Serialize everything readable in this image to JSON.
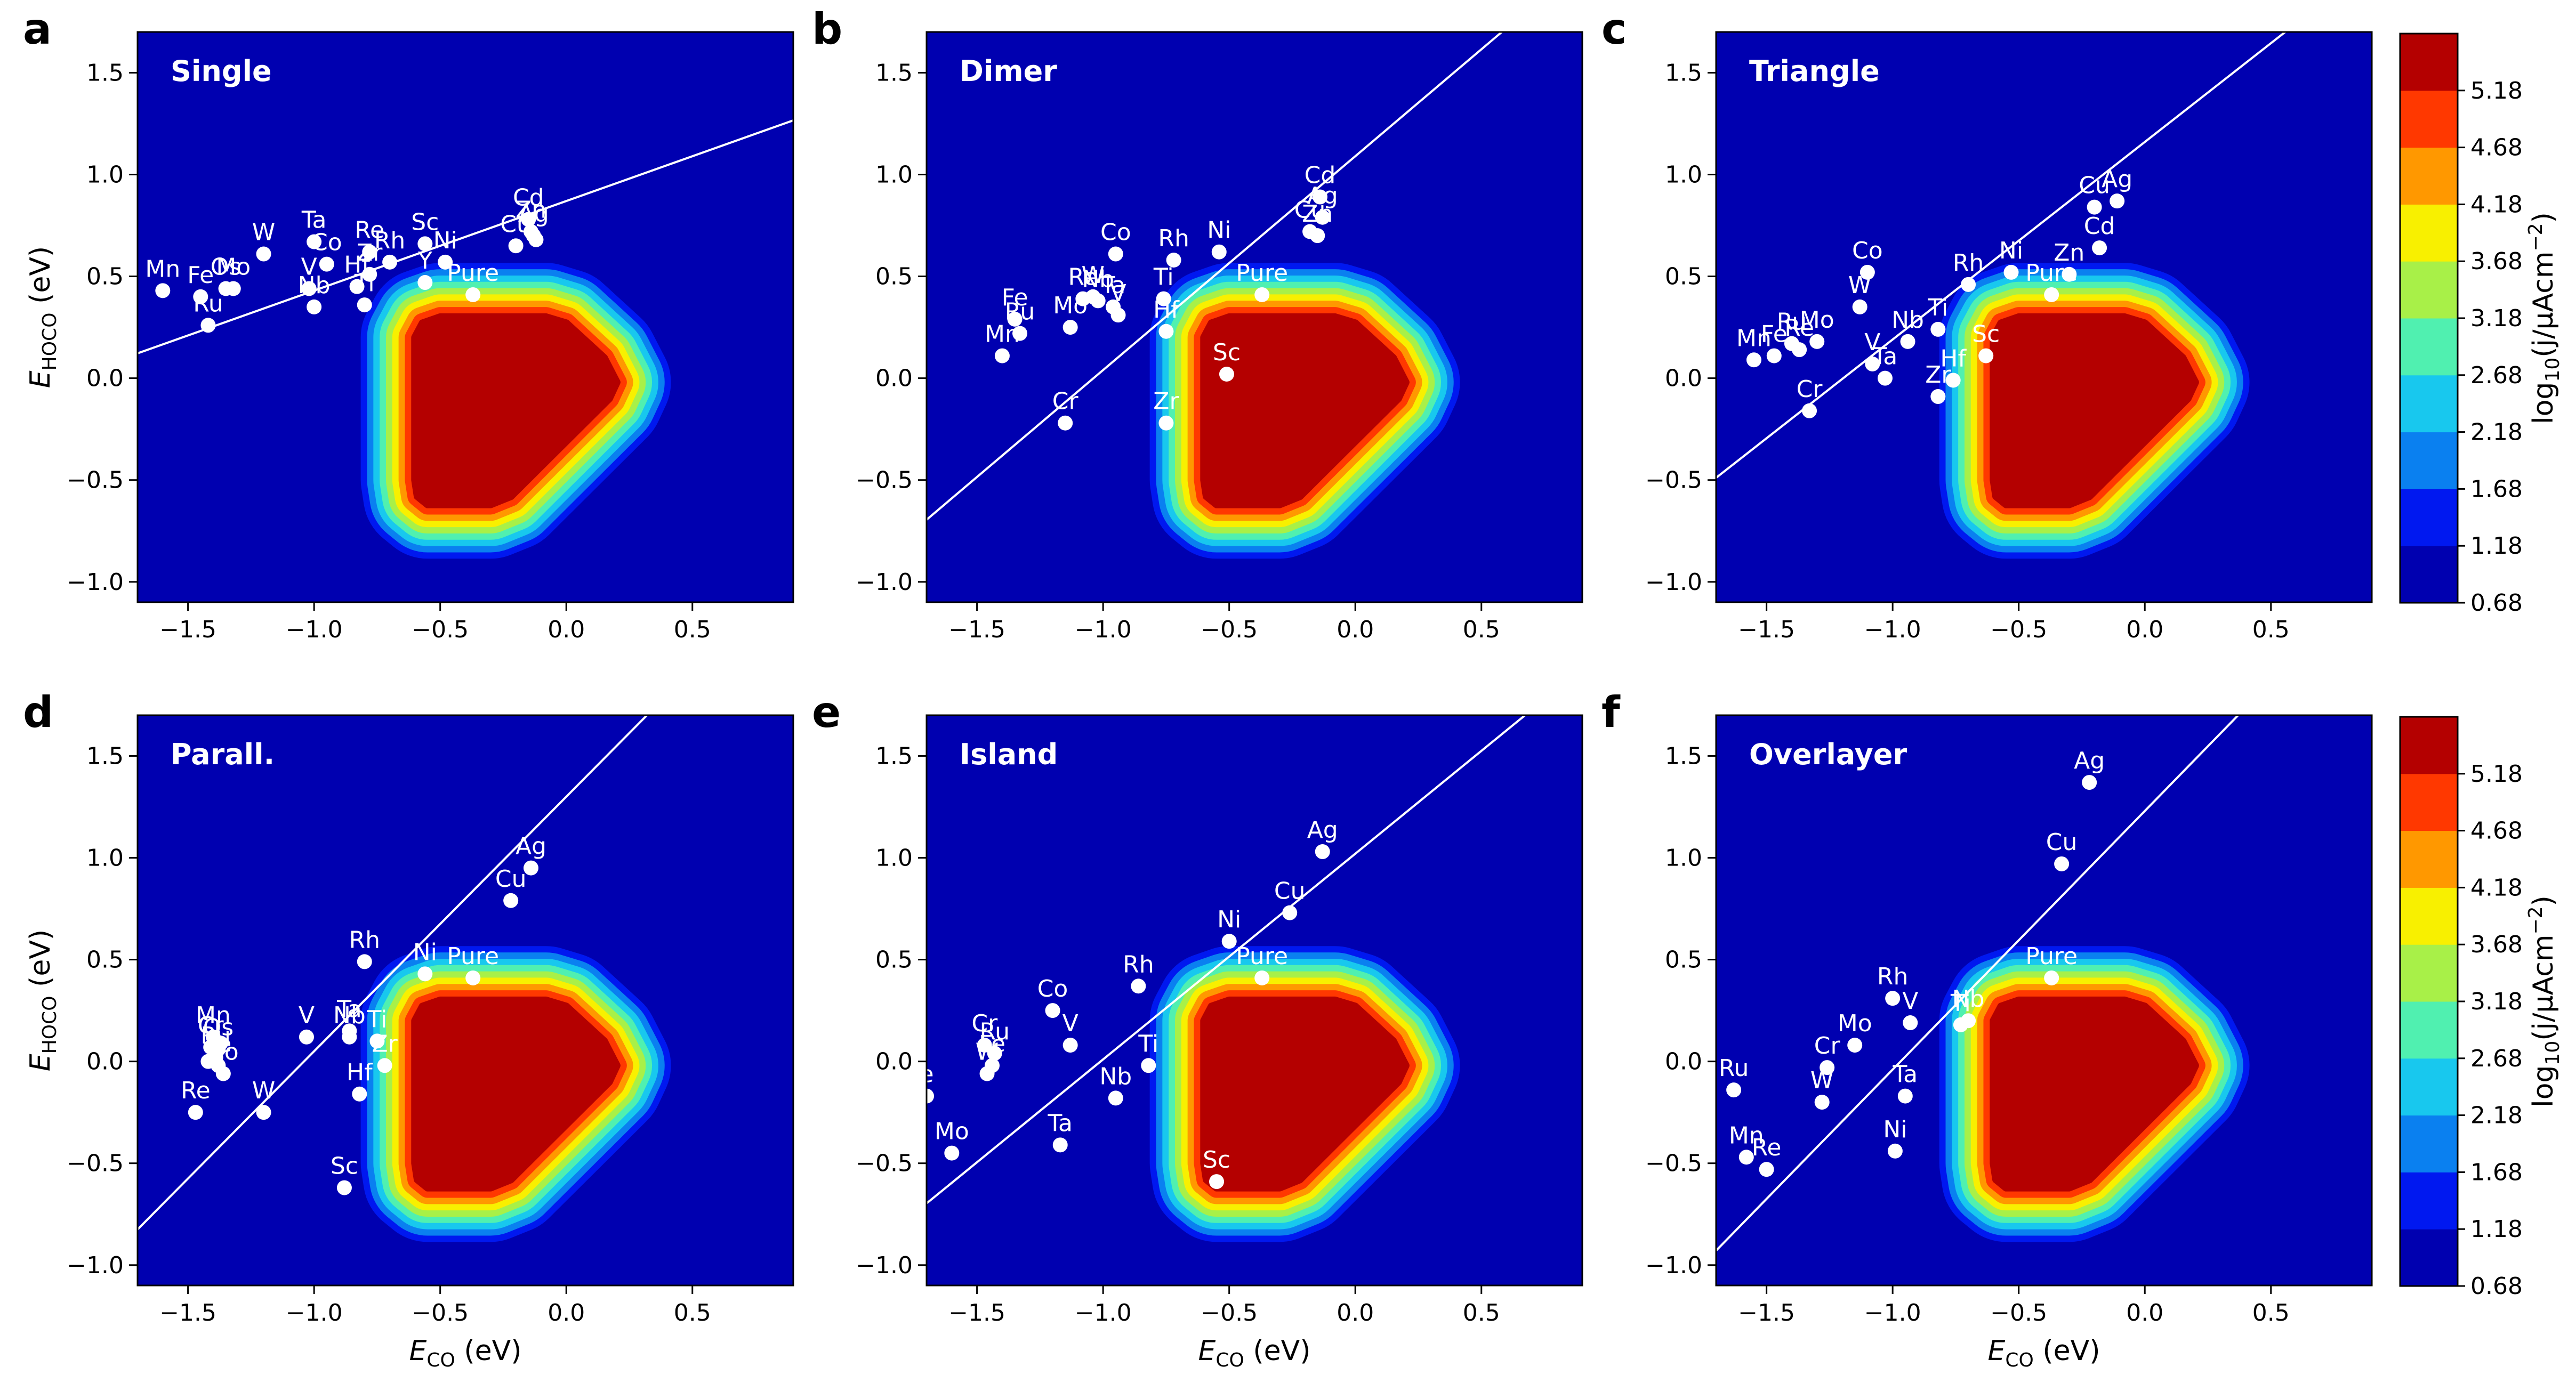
{
  "figure": {
    "panels_order": [
      "a",
      "b",
      "c",
      "d",
      "e",
      "f"
    ]
  },
  "colorbars": [
    {
      "label_main": "log",
      "label_sub": "10",
      "label_rest": "(j/μAcm",
      "label_sup": "−2",
      "label_end": ")",
      "ticks": [
        "0.68",
        "1.18",
        "1.68",
        "2.18",
        "2.68",
        "3.18",
        "3.68",
        "4.18",
        "4.68",
        "5.18"
      ],
      "colors": [
        "#0000b0",
        "#0018f0",
        "#0a80f0",
        "#18c8ee",
        "#50f0b0",
        "#a8f048",
        "#f8f000",
        "#ff9800",
        "#ff3800",
        "#b40000"
      ]
    },
    {
      "label_main": "log",
      "label_sub": "10",
      "label_rest": "(j/μAcm",
      "label_sup": "−2",
      "label_end": ")",
      "ticks": [
        "0.68",
        "1.18",
        "1.68",
        "2.18",
        "2.68",
        "3.18",
        "3.68",
        "4.18",
        "4.68",
        "5.18"
      ],
      "colors": [
        "#0000b0",
        "#0018f0",
        "#0a80f0",
        "#18c8ee",
        "#50f0b0",
        "#a8f048",
        "#f8f000",
        "#ff9800",
        "#ff3800",
        "#b40000"
      ]
    }
  ],
  "chart_data": [
    {
      "panel_letter": "a",
      "type": "scatter",
      "title": "Single",
      "xlabel": "E",
      "xlabel_sub": "CO",
      "xlabel_unit": " (eV)",
      "ylabel": "E",
      "ylabel_sub": "HOCO",
      "ylabel_unit": " (eV)",
      "show_xlabel": false,
      "show_ylabel": true,
      "xlim": [
        -1.7,
        0.9
      ],
      "ylim": [
        -1.1,
        1.7
      ],
      "xticks": [
        "−1.5",
        "−1.0",
        "−0.5",
        "0.0",
        "0.5"
      ],
      "xtick_values": [
        -1.5,
        -1.0,
        -0.5,
        0.0,
        0.5
      ],
      "yticks": [
        "−1.0",
        "−0.5",
        "0.0",
        "0.5",
        "1.0",
        "1.5"
      ],
      "ytick_values": [
        -1.0,
        -0.5,
        0.0,
        0.5,
        1.0,
        1.5
      ],
      "scaling_line": {
        "slope": 0.44,
        "intercept": 0.87
      },
      "points": [
        {
          "label": "Mn",
          "x": -1.6,
          "y": 0.43
        },
        {
          "label": "Fe",
          "x": -1.45,
          "y": 0.4
        },
        {
          "label": "Ru",
          "x": -1.42,
          "y": 0.26
        },
        {
          "label": "Os",
          "x": -1.35,
          "y": 0.44
        },
        {
          "label": "Mo",
          "x": -1.32,
          "y": 0.44
        },
        {
          "label": "W",
          "x": -1.2,
          "y": 0.61
        },
        {
          "label": "Ta",
          "x": -1.0,
          "y": 0.67
        },
        {
          "label": "Co",
          "x": -0.95,
          "y": 0.56
        },
        {
          "label": "V",
          "x": -1.02,
          "y": 0.44
        },
        {
          "label": "Nb",
          "x": -1.0,
          "y": 0.35
        },
        {
          "label": "Hf",
          "x": -0.83,
          "y": 0.45
        },
        {
          "label": "Ti",
          "x": -0.8,
          "y": 0.36
        },
        {
          "label": "Re",
          "x": -0.78,
          "y": 0.62
        },
        {
          "label": "Zr",
          "x": -0.78,
          "y": 0.51
        },
        {
          "label": "Rh",
          "x": -0.7,
          "y": 0.57
        },
        {
          "label": "Sc",
          "x": -0.56,
          "y": 0.66
        },
        {
          "label": "Ni",
          "x": -0.48,
          "y": 0.57
        },
        {
          "label": "Y",
          "x": -0.56,
          "y": 0.47
        },
        {
          "label": "Pure",
          "x": -0.37,
          "y": 0.41
        },
        {
          "label": "Cd",
          "x": -0.15,
          "y": 0.78
        },
        {
          "label": "Zn",
          "x": -0.14,
          "y": 0.72
        },
        {
          "label": "Ag",
          "x": -0.13,
          "y": 0.7
        },
        {
          "label": "Cu",
          "x": -0.2,
          "y": 0.65
        },
        {
          "label": "",
          "x": -0.12,
          "y": 0.68
        }
      ]
    },
    {
      "panel_letter": "b",
      "type": "scatter",
      "title": "Dimer",
      "xlabel": "E",
      "xlabel_sub": "CO",
      "xlabel_unit": " (eV)",
      "ylabel": "E",
      "ylabel_sub": "HOCO",
      "ylabel_unit": " (eV)",
      "show_xlabel": false,
      "show_ylabel": false,
      "xlim": [
        -1.7,
        0.9
      ],
      "ylim": [
        -1.1,
        1.7
      ],
      "xticks": [
        "−1.5",
        "−1.0",
        "−0.5",
        "0.0",
        "0.5"
      ],
      "xtick_values": [
        -1.5,
        -1.0,
        -0.5,
        0.0,
        0.5
      ],
      "yticks": [
        "−1.0",
        "−0.5",
        "0.0",
        "0.5",
        "1.0",
        "1.5"
      ],
      "ytick_values": [
        -1.0,
        -0.5,
        0.0,
        0.5,
        1.0,
        1.5
      ],
      "scaling_line": {
        "slope": 1.05,
        "intercept": 1.09
      },
      "points": [
        {
          "label": "Fe",
          "x": -1.35,
          "y": 0.29
        },
        {
          "label": "Ru",
          "x": -1.33,
          "y": 0.22
        },
        {
          "label": "Mn",
          "x": -1.4,
          "y": 0.11
        },
        {
          "label": "Cr",
          "x": -1.15,
          "y": -0.22
        },
        {
          "label": "Co",
          "x": -0.95,
          "y": 0.61
        },
        {
          "label": "Re",
          "x": -1.08,
          "y": 0.39
        },
        {
          "label": "Mo",
          "x": -1.13,
          "y": 0.25
        },
        {
          "label": "W",
          "x": -1.04,
          "y": 0.4
        },
        {
          "label": "Nb",
          "x": -1.02,
          "y": 0.38
        },
        {
          "label": "Ta",
          "x": -0.96,
          "y": 0.35
        },
        {
          "label": "V",
          "x": -0.94,
          "y": 0.31
        },
        {
          "label": "Ti",
          "x": -0.76,
          "y": 0.39
        },
        {
          "label": "Hf",
          "x": -0.75,
          "y": 0.23
        },
        {
          "label": "Zr",
          "x": -0.75,
          "y": -0.22
        },
        {
          "label": "Rh",
          "x": -0.72,
          "y": 0.58
        },
        {
          "label": "Ni",
          "x": -0.54,
          "y": 0.62
        },
        {
          "label": "Sc",
          "x": -0.51,
          "y": 0.02
        },
        {
          "label": "Pure",
          "x": -0.37,
          "y": 0.41
        },
        {
          "label": "Cd",
          "x": -0.14,
          "y": 0.89
        },
        {
          "label": "Ag",
          "x": -0.13,
          "y": 0.79
        },
        {
          "label": "Cu",
          "x": -0.18,
          "y": 0.72
        },
        {
          "label": "Zn",
          "x": -0.15,
          "y": 0.7
        }
      ]
    },
    {
      "panel_letter": "c",
      "type": "scatter",
      "title": "Triangle",
      "xlabel": "E",
      "xlabel_sub": "CO",
      "xlabel_unit": " (eV)",
      "ylabel": "E",
      "ylabel_sub": "HOCO",
      "ylabel_unit": " (eV)",
      "show_xlabel": false,
      "show_ylabel": false,
      "xlim": [
        -1.7,
        0.9
      ],
      "ylim": [
        -1.1,
        1.7
      ],
      "xticks": [
        "−1.5",
        "−1.0",
        "−0.5",
        "0.0",
        "0.5"
      ],
      "xtick_values": [
        -1.5,
        -1.0,
        -0.5,
        0.0,
        0.5
      ],
      "yticks": [
        "−1.0",
        "−0.5",
        "0.0",
        "0.5",
        "1.0",
        "1.5"
      ],
      "ytick_values": [
        -1.0,
        -0.5,
        0.0,
        0.5,
        1.0,
        1.5
      ],
      "scaling_line": {
        "slope": 0.97,
        "intercept": 1.16
      },
      "points": [
        {
          "label": "Mn",
          "x": -1.55,
          "y": 0.09
        },
        {
          "label": "Fe",
          "x": -1.47,
          "y": 0.11
        },
        {
          "label": "Ru",
          "x": -1.4,
          "y": 0.17
        },
        {
          "label": "Re",
          "x": -1.37,
          "y": 0.14
        },
        {
          "label": "Mo",
          "x": -1.3,
          "y": 0.18
        },
        {
          "label": "Cr",
          "x": -1.33,
          "y": -0.16
        },
        {
          "label": "Co",
          "x": -1.1,
          "y": 0.52
        },
        {
          "label": "W",
          "x": -1.13,
          "y": 0.35
        },
        {
          "label": "V",
          "x": -1.08,
          "y": 0.07
        },
        {
          "label": "Ta",
          "x": -1.03,
          "y": 0.0
        },
        {
          "label": "Nb",
          "x": -0.94,
          "y": 0.18
        },
        {
          "label": "Ti",
          "x": -0.82,
          "y": 0.24
        },
        {
          "label": "Hf",
          "x": -0.76,
          "y": -0.01
        },
        {
          "label": "Zr",
          "x": -0.82,
          "y": -0.09
        },
        {
          "label": "Rh",
          "x": -0.7,
          "y": 0.46
        },
        {
          "label": "Ni",
          "x": -0.53,
          "y": 0.52
        },
        {
          "label": "Sc",
          "x": -0.63,
          "y": 0.11
        },
        {
          "label": "Pure",
          "x": -0.37,
          "y": 0.41
        },
        {
          "label": "Zn",
          "x": -0.3,
          "y": 0.51
        },
        {
          "label": "Cu",
          "x": -0.2,
          "y": 0.84
        },
        {
          "label": "Ag",
          "x": -0.11,
          "y": 0.87
        },
        {
          "label": "Cd",
          "x": -0.18,
          "y": 0.64
        }
      ]
    },
    {
      "panel_letter": "d",
      "type": "scatter",
      "title": "Parall.",
      "xlabel": "E",
      "xlabel_sub": "CO",
      "xlabel_unit": " (eV)",
      "ylabel": "E",
      "ylabel_sub": "HOCO",
      "ylabel_unit": " (eV)",
      "show_xlabel": true,
      "show_ylabel": true,
      "xlim": [
        -1.7,
        0.9
      ],
      "ylim": [
        -1.1,
        1.7
      ],
      "xticks": [
        "−1.5",
        "−1.0",
        "−0.5",
        "0.0",
        "0.5"
      ],
      "xtick_values": [
        -1.5,
        -1.0,
        -0.5,
        0.0,
        0.5
      ],
      "yticks": [
        "−1.0",
        "−0.5",
        "0.0",
        "0.5",
        "1.0",
        "1.5"
      ],
      "ytick_values": [
        -1.0,
        -0.5,
        0.0,
        0.5,
        1.0,
        1.5
      ],
      "scaling_line": {
        "slope": 1.25,
        "intercept": 1.3
      },
      "points": [
        {
          "label": "Mn",
          "x": -1.4,
          "y": 0.12
        },
        {
          "label": "Cr",
          "x": -1.41,
          "y": 0.07
        },
        {
          "label": "Os",
          "x": -1.38,
          "y": 0.06
        },
        {
          "label": "Ru",
          "x": -1.39,
          "y": 0.02
        },
        {
          "label": "Fe",
          "x": -1.38,
          "y": -0.02
        },
        {
          "label": "Co",
          "x": -1.36,
          "y": -0.06
        },
        {
          "label": "",
          "x": -1.42,
          "y": 0.0
        },
        {
          "label": "",
          "x": -1.37,
          "y": 0.09
        },
        {
          "label": "Re",
          "x": -1.47,
          "y": -0.25
        },
        {
          "label": "W",
          "x": -1.2,
          "y": -0.25
        },
        {
          "label": "V",
          "x": -1.03,
          "y": 0.12
        },
        {
          "label": "Ta",
          "x": -0.86,
          "y": 0.15
        },
        {
          "label": "Nb",
          "x": -0.86,
          "y": 0.12
        },
        {
          "label": "Ti",
          "x": -0.75,
          "y": 0.1
        },
        {
          "label": "Zr",
          "x": -0.72,
          "y": -0.02
        },
        {
          "label": "Hf",
          "x": -0.82,
          "y": -0.16
        },
        {
          "label": "Sc",
          "x": -0.88,
          "y": -0.62
        },
        {
          "label": "Rh",
          "x": -0.8,
          "y": 0.49
        },
        {
          "label": "Ni",
          "x": -0.56,
          "y": 0.43
        },
        {
          "label": "Pure",
          "x": -0.37,
          "y": 0.41
        },
        {
          "label": "Cu",
          "x": -0.22,
          "y": 0.79
        },
        {
          "label": "Ag",
          "x": -0.14,
          "y": 0.95
        }
      ]
    },
    {
      "panel_letter": "e",
      "type": "scatter",
      "title": "Island",
      "xlabel": "E",
      "xlabel_sub": "CO",
      "xlabel_unit": " (eV)",
      "ylabel": "E",
      "ylabel_sub": "HOCO",
      "ylabel_unit": " (eV)",
      "show_xlabel": true,
      "show_ylabel": false,
      "xlim": [
        -1.7,
        0.9
      ],
      "ylim": [
        -1.1,
        1.7
      ],
      "xticks": [
        "−1.5",
        "−1.0",
        "−0.5",
        "0.0",
        "0.5"
      ],
      "xtick_values": [
        -1.5,
        -1.0,
        -0.5,
        0.0,
        0.5
      ],
      "yticks": [
        "−1.0",
        "−0.5",
        "0.0",
        "0.5",
        "1.0",
        "1.5"
      ],
      "ytick_values": [
        -1.0,
        -0.5,
        0.0,
        0.5,
        1.0,
        1.5
      ],
      "scaling_line": {
        "slope": 1.01,
        "intercept": 1.02
      },
      "points": [
        {
          "label": "e",
          "x": -1.7,
          "y": -0.17
        },
        {
          "label": "Mo",
          "x": -1.6,
          "y": -0.45
        },
        {
          "label": "Cr",
          "x": -1.47,
          "y": 0.08
        },
        {
          "label": "Ru",
          "x": -1.43,
          "y": 0.04
        },
        {
          "label": "Fe",
          "x": -1.44,
          "y": -0.02
        },
        {
          "label": "W",
          "x": -1.46,
          "y": -0.06
        },
        {
          "label": "Co",
          "x": -1.2,
          "y": 0.25
        },
        {
          "label": "V",
          "x": -1.13,
          "y": 0.08
        },
        {
          "label": "Ta",
          "x": -1.17,
          "y": -0.41
        },
        {
          "label": "Nb",
          "x": -0.95,
          "y": -0.18
        },
        {
          "label": "Rh",
          "x": -0.86,
          "y": 0.37
        },
        {
          "label": "Ti",
          "x": -0.82,
          "y": -0.02
        },
        {
          "label": "Ni",
          "x": -0.5,
          "y": 0.59
        },
        {
          "label": "Sc",
          "x": -0.55,
          "y": -0.59
        },
        {
          "label": "Pure",
          "x": -0.37,
          "y": 0.41
        },
        {
          "label": "Cu",
          "x": -0.26,
          "y": 0.73
        },
        {
          "label": "Ag",
          "x": -0.13,
          "y": 1.03
        }
      ]
    },
    {
      "panel_letter": "f",
      "type": "scatter",
      "title": "Overlayer",
      "xlabel": "E",
      "xlabel_sub": "CO",
      "xlabel_unit": " (eV)",
      "ylabel": "E",
      "ylabel_sub": "HOCO",
      "ylabel_unit": " (eV)",
      "show_xlabel": true,
      "show_ylabel": false,
      "xlim": [
        -1.7,
        0.9
      ],
      "ylim": [
        -1.1,
        1.7
      ],
      "xticks": [
        "−1.5",
        "−1.0",
        "−0.5",
        "0.0",
        "0.5"
      ],
      "xtick_values": [
        -1.5,
        -1.0,
        -0.5,
        0.0,
        0.5
      ],
      "yticks": [
        "−1.0",
        "−0.5",
        "0.0",
        "0.5",
        "1.0",
        "1.5"
      ],
      "ytick_values": [
        -1.0,
        -0.5,
        0.0,
        0.5,
        1.0,
        1.5
      ],
      "scaling_line": {
        "slope": 1.27,
        "intercept": 1.23
      },
      "points": [
        {
          "label": "Ru",
          "x": -1.63,
          "y": -0.14
        },
        {
          "label": "Mn",
          "x": -1.58,
          "y": -0.47
        },
        {
          "label": "Re",
          "x": -1.5,
          "y": -0.53
        },
        {
          "label": "W",
          "x": -1.28,
          "y": -0.2
        },
        {
          "label": "Cr",
          "x": -1.26,
          "y": -0.03
        },
        {
          "label": "Mo",
          "x": -1.15,
          "y": 0.08
        },
        {
          "label": "Rh",
          "x": -1.0,
          "y": 0.31
        },
        {
          "label": "V",
          "x": -0.93,
          "y": 0.19
        },
        {
          "label": "Ta",
          "x": -0.95,
          "y": -0.17
        },
        {
          "label": "Ni",
          "x": -0.99,
          "y": -0.44
        },
        {
          "label": "Ti",
          "x": -0.73,
          "y": 0.18
        },
        {
          "label": "Nb",
          "x": -0.7,
          "y": 0.2
        },
        {
          "label": "Pure",
          "x": -0.37,
          "y": 0.41
        },
        {
          "label": "Cu",
          "x": -0.33,
          "y": 0.97
        },
        {
          "label": "Ag",
          "x": -0.22,
          "y": 1.37
        }
      ]
    }
  ]
}
